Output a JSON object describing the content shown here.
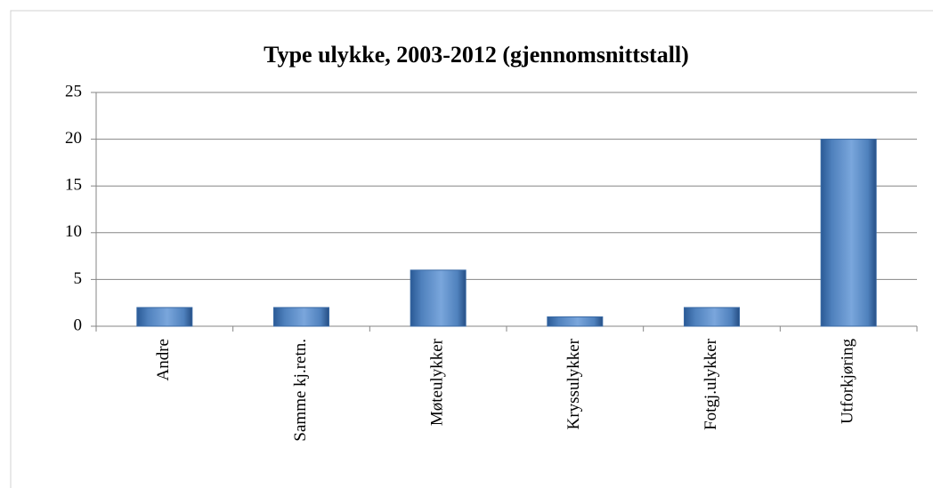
{
  "chart_data": {
    "type": "bar",
    "title": "Type ulykke, 2003-2012 (gjennomsnittstall)",
    "categories": [
      "Andre",
      "Samme kj.retn.",
      "Møteulykker",
      "Kryssulykker",
      "Fotgj.ulykker",
      "Utforkjøring"
    ],
    "values": [
      2,
      2,
      6,
      1,
      2,
      20
    ],
    "color": "#4f81bd",
    "ylim": [
      0,
      25
    ],
    "yticks": [
      0,
      5,
      10,
      15,
      20,
      25
    ],
    "grid": true
  }
}
